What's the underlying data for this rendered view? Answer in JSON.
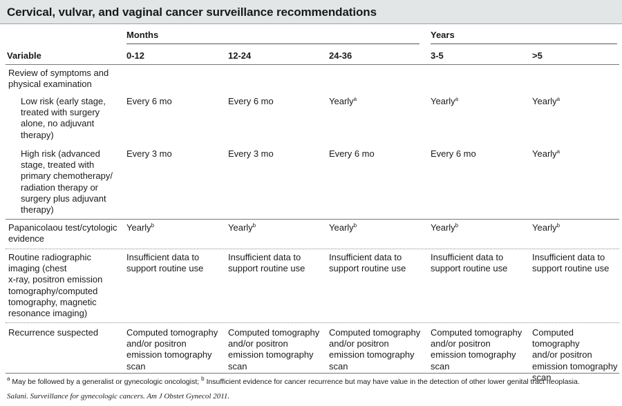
{
  "title": "Cervical, vulvar, and vaginal cancer surveillance recommendations",
  "group_headers": {
    "months": "Months",
    "years": "Years"
  },
  "columns": [
    "Variable",
    "0-12",
    "12-24",
    "24-36",
    "3-5",
    ">5"
  ],
  "rows": [
    {
      "variable": "Review of symptoms and\nphysical examination",
      "indent": false,
      "cells": []
    },
    {
      "variable": "Low risk (early stage,\ntreated with surgery\nalone, no adjuvant\ntherapy)",
      "indent": true,
      "cells": [
        {
          "text": "Every 6 mo",
          "sup": ""
        },
        {
          "text": "Every 6 mo",
          "sup": ""
        },
        {
          "text": "Yearly",
          "sup": "a"
        },
        {
          "text": "Yearly",
          "sup": "a"
        },
        {
          "text": "Yearly",
          "sup": "a"
        }
      ]
    },
    {
      "variable": "High risk (advanced\nstage, treated with\nprimary chemotherapy/\nradiation therapy or\nsurgery plus adjuvant\ntherapy)",
      "indent": true,
      "cells": [
        {
          "text": "Every 3 mo",
          "sup": ""
        },
        {
          "text": "Every 3 mo",
          "sup": ""
        },
        {
          "text": "Every 6 mo",
          "sup": ""
        },
        {
          "text": "Every 6 mo",
          "sup": ""
        },
        {
          "text": "Yearly",
          "sup": "a"
        }
      ]
    },
    {
      "variable": "Papanicolaou test/cytologic\nevidence",
      "indent": false,
      "cells": [
        {
          "text": "Yearly",
          "sup": "b"
        },
        {
          "text": "Yearly",
          "sup": "b"
        },
        {
          "text": "Yearly",
          "sup": "b"
        },
        {
          "text": "Yearly",
          "sup": "b"
        },
        {
          "text": "Yearly",
          "sup": "b"
        }
      ]
    },
    {
      "variable": "Routine radiographic\nimaging (chest\nx-ray, positron emission\ntomography/computed\ntomography, magnetic\nresonance imaging)",
      "indent": false,
      "cells": [
        {
          "text": "Insufficient data to\nsupport routine use",
          "sup": ""
        },
        {
          "text": "Insufficient data to\nsupport routine use",
          "sup": ""
        },
        {
          "text": "Insufficient data to\nsupport routine use",
          "sup": ""
        },
        {
          "text": "Insufficient data to\nsupport routine use",
          "sup": ""
        },
        {
          "text": "Insufficient data to\nsupport routine use",
          "sup": ""
        }
      ]
    },
    {
      "variable": "Recurrence suspected",
      "indent": false,
      "cells": [
        {
          "text": "Computed tomography\nand/or positron\nemission tomography\nscan",
          "sup": ""
        },
        {
          "text": "Computed tomography\nand/or positron\nemission tomography\nscan",
          "sup": ""
        },
        {
          "text": "Computed tomography\nand/or positron\nemission tomography\nscan",
          "sup": ""
        },
        {
          "text": "Computed tomography\nand/or positron\nemission tomography\nscan",
          "sup": ""
        },
        {
          "text": "Computed tomography\nand/or positron\nemission tomography\nscan",
          "sup": ""
        }
      ]
    }
  ],
  "footnotes": {
    "a_mark": "a",
    "a_text": " May be followed by a generalist or gynecologic oncologist; ",
    "b_mark": "b",
    "b_text": " Insufficient evidence for cancer recurrence but may have value in the detection of other lower genital tract neoplasia."
  },
  "source": "Salani. Surveillance for gynecologic cancers. Am J Obstet Gynecol 2011.",
  "colors": {
    "title_bg": "#e2e6e6",
    "text": "#1a1a1a",
    "rule": "#777777"
  }
}
